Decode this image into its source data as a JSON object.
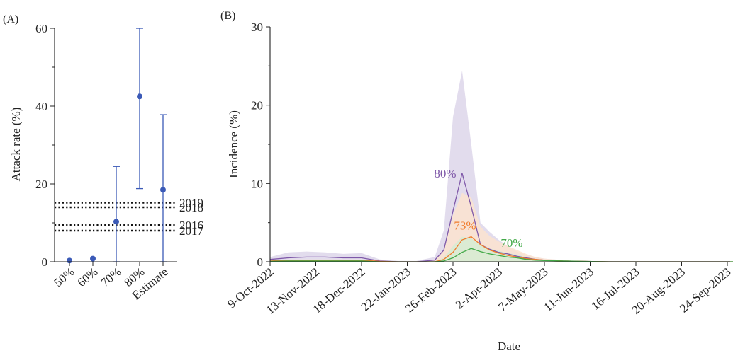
{
  "colors": {
    "blue": "#3b5ab7",
    "purple": "#7e57a8",
    "purple_band": "#ddd6ea",
    "orange": "#f07a2a",
    "orange_band": "#fbe3cf",
    "green": "#41a947",
    "green_band": "#d6ecd2"
  },
  "chart_data": [
    {
      "panel": "(A)",
      "type": "scatter",
      "ylabel": "Attack rate (%)",
      "ylim": [
        0,
        60
      ],
      "yticks": [
        "0",
        "20",
        "40",
        "60"
      ],
      "categories": [
        "50%",
        "60%",
        "70%",
        "80%",
        "Estimate"
      ],
      "values": [
        0.3,
        0.8,
        10.3,
        42.5,
        18.5
      ],
      "lower": [
        0.1,
        0.3,
        0,
        18.8,
        0
      ],
      "upper": [
        0.6,
        1.3,
        24.5,
        60,
        37.8
      ],
      "reference_lines": [
        {
          "label": "2019",
          "value": 15.2
        },
        {
          "label": "2018",
          "value": 14.0
        },
        {
          "label": "2016",
          "value": 9.5
        },
        {
          "label": "2017",
          "value": 8.0
        }
      ]
    },
    {
      "panel": "(B)",
      "type": "area",
      "xlabel": "Date",
      "ylabel": "Incidence (%)",
      "ylim": [
        0,
        30
      ],
      "yticks": [
        "0",
        "10",
        "20",
        "30"
      ],
      "xtick_labels": [
        "9-Oct-2022",
        "13-Nov-2022",
        "18-Dec-2022",
        "22-Jan-2023",
        "26-Feb-2023",
        "2-Apr-2023",
        "7-May-2023",
        "11-Jun-2023",
        "16-Jul-2023",
        "20-Aug-2023",
        "24-Sep-2023"
      ],
      "x": [
        "2022-10-09",
        "2022-10-23",
        "2022-11-06",
        "2022-11-20",
        "2022-12-04",
        "2022-12-18",
        "2023-01-01",
        "2023-01-15",
        "2023-01-29",
        "2023-02-12",
        "2023-02-19",
        "2023-02-26",
        "2023-03-05",
        "2023-03-12",
        "2023-03-19",
        "2023-03-26",
        "2023-04-02",
        "2023-04-09",
        "2023-04-16",
        "2023-04-23",
        "2023-04-30",
        "2023-05-07",
        "2023-05-21",
        "2023-06-04",
        "2023-06-25",
        "2023-07-16",
        "2023-08-06",
        "2023-08-27",
        "2023-09-17",
        "2023-10-01"
      ],
      "series": [
        {
          "name": "80%",
          "color": "#7e57a8",
          "band_color": "#ddd6ea",
          "values": [
            0.3,
            0.5,
            0.6,
            0.6,
            0.5,
            0.5,
            0.1,
            0.0,
            0.0,
            0.2,
            1.5,
            6.5,
            11.3,
            7.0,
            2.2,
            1.6,
            1.2,
            1.0,
            0.7,
            0.5,
            0.3,
            0.2,
            0.1,
            0.05,
            0.0,
            0.0,
            0.0,
            0.0,
            0.0,
            0.0
          ],
          "upper": [
            0.6,
            1.2,
            1.3,
            1.2,
            1.0,
            1.1,
            0.3,
            0.1,
            0.1,
            0.6,
            4.0,
            18.5,
            24.4,
            15.0,
            5.0,
            3.8,
            2.8,
            2.0,
            1.3,
            0.9,
            0.6,
            0.4,
            0.2,
            0.1,
            0.05,
            0.0,
            0.0,
            0.0,
            0.0,
            0.0
          ],
          "lower": [
            0,
            0,
            0,
            0,
            0,
            0,
            0,
            0,
            0,
            0,
            0,
            0,
            0,
            0,
            0,
            0,
            0,
            0,
            0,
            0,
            0,
            0,
            0,
            0,
            0,
            0,
            0,
            0,
            0,
            0
          ]
        },
        {
          "name": "73%",
          "color": "#f07a2a",
          "band_color": "#fbe3cf",
          "values": [
            0.1,
            0.2,
            0.2,
            0.2,
            0.2,
            0.2,
            0.05,
            0.0,
            0.0,
            0.0,
            0.3,
            1.2,
            2.8,
            3.2,
            2.2,
            1.5,
            1.1,
            0.8,
            0.6,
            0.4,
            0.3,
            0.2,
            0.1,
            0.05,
            0.0,
            0.0,
            0.0,
            0.0,
            0.0,
            0.0
          ],
          "upper": [
            0.2,
            0.3,
            0.3,
            0.3,
            0.3,
            0.3,
            0.1,
            0.0,
            0.0,
            0.2,
            1.5,
            6.0,
            8.8,
            8.2,
            4.5,
            3.3,
            2.6,
            2.0,
            1.5,
            1.0,
            0.6,
            0.4,
            0.2,
            0.1,
            0.05,
            0.0,
            0.0,
            0.0,
            0.0,
            0.0
          ],
          "lower": [
            0,
            0,
            0,
            0,
            0,
            0,
            0,
            0,
            0,
            0,
            0,
            0,
            0,
            0,
            0,
            0,
            0,
            0,
            0,
            0,
            0,
            0,
            0,
            0,
            0,
            0,
            0,
            0,
            0,
            0
          ]
        },
        {
          "name": "70%",
          "color": "#41a947",
          "band_color": "#d6ecd2",
          "values": [
            0.05,
            0.1,
            0.1,
            0.1,
            0.1,
            0.1,
            0.0,
            0.0,
            0.0,
            0.0,
            0.1,
            0.5,
            1.2,
            1.7,
            1.3,
            1.0,
            0.8,
            0.6,
            0.5,
            0.3,
            0.2,
            0.15,
            0.1,
            0.05,
            0.0,
            0.0,
            0.0,
            0.0,
            0.0,
            0.0
          ],
          "upper": [
            0.1,
            0.15,
            0.15,
            0.15,
            0.15,
            0.15,
            0.05,
            0.0,
            0.0,
            0.1,
            0.5,
            2.0,
            3.2,
            3.0,
            2.2,
            1.7,
            1.4,
            1.1,
            0.9,
            0.6,
            0.4,
            0.25,
            0.15,
            0.1,
            0.05,
            0.0,
            0.0,
            0.0,
            0.0,
            0.0
          ],
          "lower": [
            0,
            0,
            0,
            0,
            0,
            0,
            0,
            0,
            0,
            0,
            0,
            0,
            0,
            0,
            0,
            0,
            0,
            0,
            0,
            0,
            0,
            0,
            0,
            0,
            0,
            0,
            0,
            0,
            0,
            0
          ]
        }
      ]
    }
  ]
}
